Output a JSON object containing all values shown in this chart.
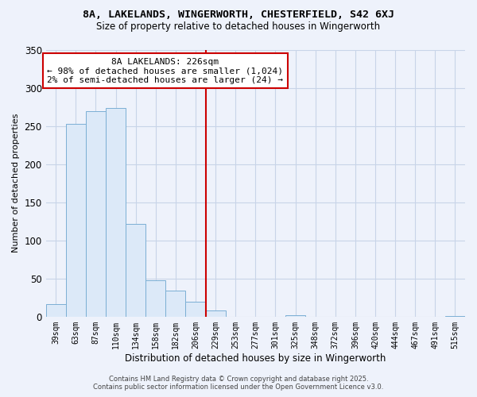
{
  "title": "8A, LAKELANDS, WINGERWORTH, CHESTERFIELD, S42 6XJ",
  "subtitle": "Size of property relative to detached houses in Wingerworth",
  "bar_labels": [
    "39sqm",
    "63sqm",
    "87sqm",
    "110sqm",
    "134sqm",
    "158sqm",
    "182sqm",
    "206sqm",
    "229sqm",
    "253sqm",
    "277sqm",
    "301sqm",
    "325sqm",
    "348sqm",
    "372sqm",
    "396sqm",
    "420sqm",
    "444sqm",
    "467sqm",
    "491sqm",
    "515sqm"
  ],
  "bar_values": [
    16,
    253,
    269,
    273,
    122,
    48,
    34,
    20,
    8,
    0,
    0,
    0,
    2,
    0,
    0,
    0,
    0,
    0,
    0,
    0,
    1
  ],
  "bar_color": "#dce9f8",
  "bar_edge_color": "#7bafd4",
  "vline_color": "#cc0000",
  "annotation_title": "8A LAKELANDS: 226sqm",
  "annotation_line1": "← 98% of detached houses are smaller (1,024)",
  "annotation_line2": "2% of semi-detached houses are larger (24) →",
  "annotation_box_facecolor": "#ffffff",
  "annotation_box_edgecolor": "#cc0000",
  "xlabel": "Distribution of detached houses by size in Wingerworth",
  "ylabel": "Number of detached properties",
  "ylim": [
    0,
    350
  ],
  "yticks": [
    0,
    50,
    100,
    150,
    200,
    250,
    300,
    350
  ],
  "footer1": "Contains HM Land Registry data © Crown copyright and database right 2025.",
  "footer2": "Contains public sector information licensed under the Open Government Licence v3.0.",
  "bg_color": "#eef2fb"
}
